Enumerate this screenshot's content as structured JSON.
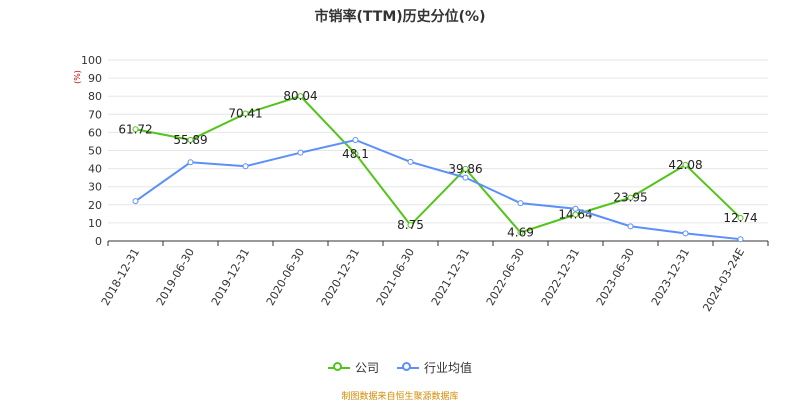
{
  "chart_data": {
    "type": "line",
    "title": "市销率(TTM)历史分位(%)",
    "ylabel": "(%)",
    "ylim": [
      0,
      100
    ],
    "yticks": [
      0,
      10,
      20,
      30,
      40,
      50,
      60,
      70,
      80,
      90,
      100
    ],
    "categories": [
      "2018-12-31",
      "2019-06-30",
      "2019-12-31",
      "2020-06-30",
      "2020-12-31",
      "2021-06-30",
      "2021-12-31",
      "2022-06-30",
      "2022-12-31",
      "2023-06-30",
      "2023-12-31",
      "2024-03-24E"
    ],
    "series": [
      {
        "name": "公司",
        "color": "#52c41a",
        "values": [
          61.72,
          55.89,
          70.41,
          80.04,
          48.1,
          8.75,
          39.86,
          4.69,
          14.64,
          23.95,
          42.08,
          12.74
        ],
        "labels": [
          "61.72",
          "55.89",
          "70.41",
          "80.04",
          "48.1",
          "8.75",
          "39.86",
          "4.69",
          "14.64",
          "23.95",
          "42.08",
          "12.74"
        ]
      },
      {
        "name": "行业均值",
        "color": "#5b8ff9",
        "values": [
          22.0,
          43.5,
          41.3,
          48.8,
          55.8,
          43.7,
          35.0,
          20.9,
          17.8,
          8.1,
          4.2,
          1.0
        ]
      }
    ],
    "grid": true,
    "legend": "bottom-center"
  },
  "footer": {
    "source": "制图数据来自恒生聚源数据库"
  }
}
